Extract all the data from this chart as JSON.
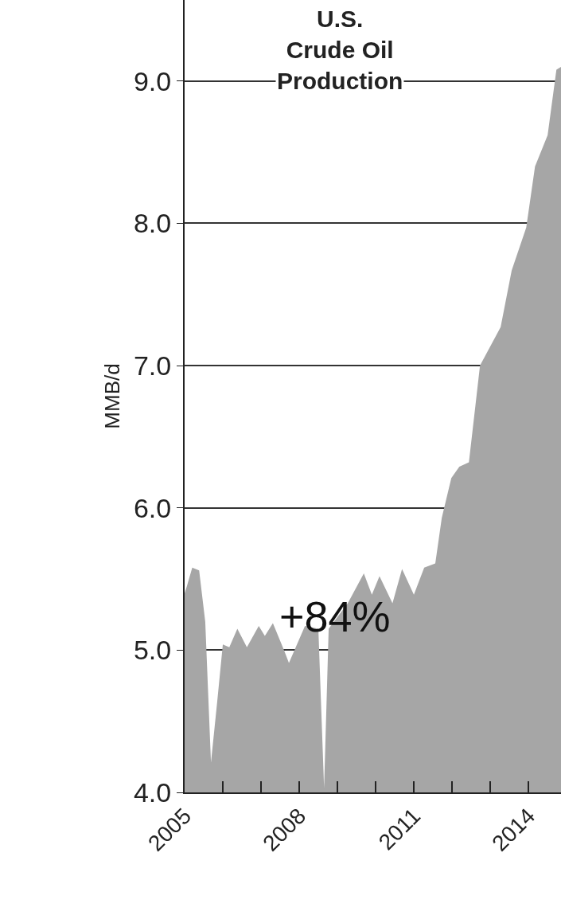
{
  "chart_data": {
    "type": "area",
    "title": "U.S.\nCrude Oil\nProduction",
    "ylabel": "MMB/d",
    "annotations": [
      "+84%"
    ],
    "x": [
      2005.0,
      2005.06,
      2005.2,
      2005.38,
      2005.54,
      2005.69,
      2005.85,
      2006.0,
      2006.17,
      2006.38,
      2006.63,
      2006.94,
      2007.1,
      2007.31,
      2007.6,
      2007.73,
      2008.15,
      2008.5,
      2008.65,
      2008.77,
      2009.27,
      2009.69,
      2009.9,
      2010.1,
      2010.44,
      2010.69,
      2011.0,
      2011.27,
      2011.56,
      2011.73,
      2011.98,
      2012.19,
      2012.44,
      2012.73,
      2013.27,
      2013.56,
      2013.94,
      2014.17,
      2014.5,
      2014.73,
      2014.85
    ],
    "series": [
      {
        "color": "#a6a6a6",
        "values": [
          5.4,
          5.45,
          5.58,
          5.56,
          5.2,
          4.21,
          4.63,
          5.04,
          5.02,
          5.15,
          5.02,
          5.17,
          5.1,
          5.19,
          5.0,
          4.91,
          5.17,
          5.15,
          4.03,
          5.15,
          5.33,
          5.54,
          5.39,
          5.52,
          5.33,
          5.57,
          5.39,
          5.58,
          5.61,
          5.93,
          6.21,
          6.29,
          6.32,
          7.0,
          7.27,
          7.67,
          7.97,
          8.4,
          8.62,
          9.08,
          9.1
        ]
      }
    ],
    "xlim": [
      2005,
      2014.85
    ],
    "xticks": [
      2005,
      {
        "value": 2006,
        "label": null
      },
      {
        "value": 2007,
        "label": null
      },
      2008,
      {
        "value": 2009,
        "label": null
      },
      {
        "value": 2010,
        "label": null
      },
      2011,
      {
        "value": 2012,
        "label": null
      },
      {
        "value": 2013,
        "label": null
      },
      2014
    ],
    "ylim": [
      4,
      9.57
    ],
    "yticks": [
      {
        "value": 4,
        "label": "4.0"
      },
      {
        "value": 5,
        "label": "5.0"
      },
      {
        "value": 6,
        "label": "6.0"
      },
      {
        "value": 7,
        "label": "7.0"
      },
      {
        "value": 8,
        "label": "8.0"
      },
      {
        "value": 9,
        "label": "9.0"
      }
    ],
    "grid": "y",
    "legend": false
  }
}
